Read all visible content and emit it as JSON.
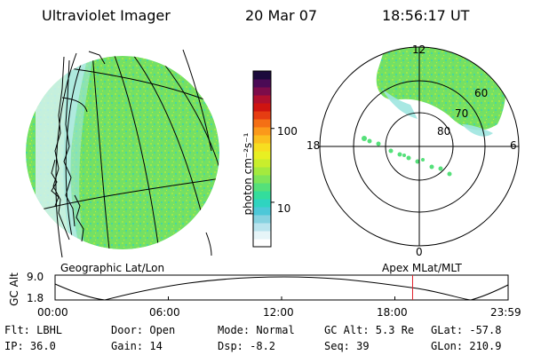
{
  "header": {
    "instrument": "Ultraviolet Imager",
    "date": "20 Mar 07",
    "time": "18:56:17 UT"
  },
  "colorbar": {
    "unit_label": "photon cm⁻²s⁻¹",
    "ticks": [
      {
        "label": "100",
        "value": 100
      },
      {
        "label": "10",
        "value": 10
      }
    ],
    "colors": [
      "#ffffff",
      "#e6f5f8",
      "#b9e4ee",
      "#86d2e0",
      "#4dc8d8",
      "#2fd4c0",
      "#33dd9c",
      "#55e07a",
      "#7ee55a",
      "#a4ea3e",
      "#c9ee2c",
      "#e8ef22",
      "#f7de20",
      "#fbbf1e",
      "#fb991a",
      "#f46f15",
      "#e63d12",
      "#cf1410",
      "#b0102e",
      "#7d0c4a",
      "#4b0a55",
      "#1c0a3c"
    ]
  },
  "labels": {
    "geo_caption": "Geographic Lat/Lon",
    "apex_caption": "Apex  MLat/MLT"
  },
  "polar": {
    "mlt_top": "12",
    "mlt_left": "18",
    "mlt_right": "6",
    "mlt_bottom": "0",
    "lat_labels": [
      "60",
      "70",
      "80"
    ]
  },
  "altitude_panel": {
    "axis_title": "GC Alt",
    "y_max": "9.0",
    "y_min": "1.8",
    "x_ticks": [
      "00:00",
      "06:00",
      "12:00",
      "18:00",
      "23:59"
    ],
    "current_hour": 18.94
  },
  "status": {
    "flt": "Flt: LBHL",
    "ip": "IP: 36.0",
    "door": "Door: Open",
    "gain": "Gain: 14",
    "mode": "Mode: Normal",
    "dsp": "Dsp:    -8.2",
    "gc_alt": "GC Alt: 5.3 Re",
    "seq": "Seq: 39",
    "glat": "GLat: -57.8",
    "glon": "GLon: 210.9"
  }
}
